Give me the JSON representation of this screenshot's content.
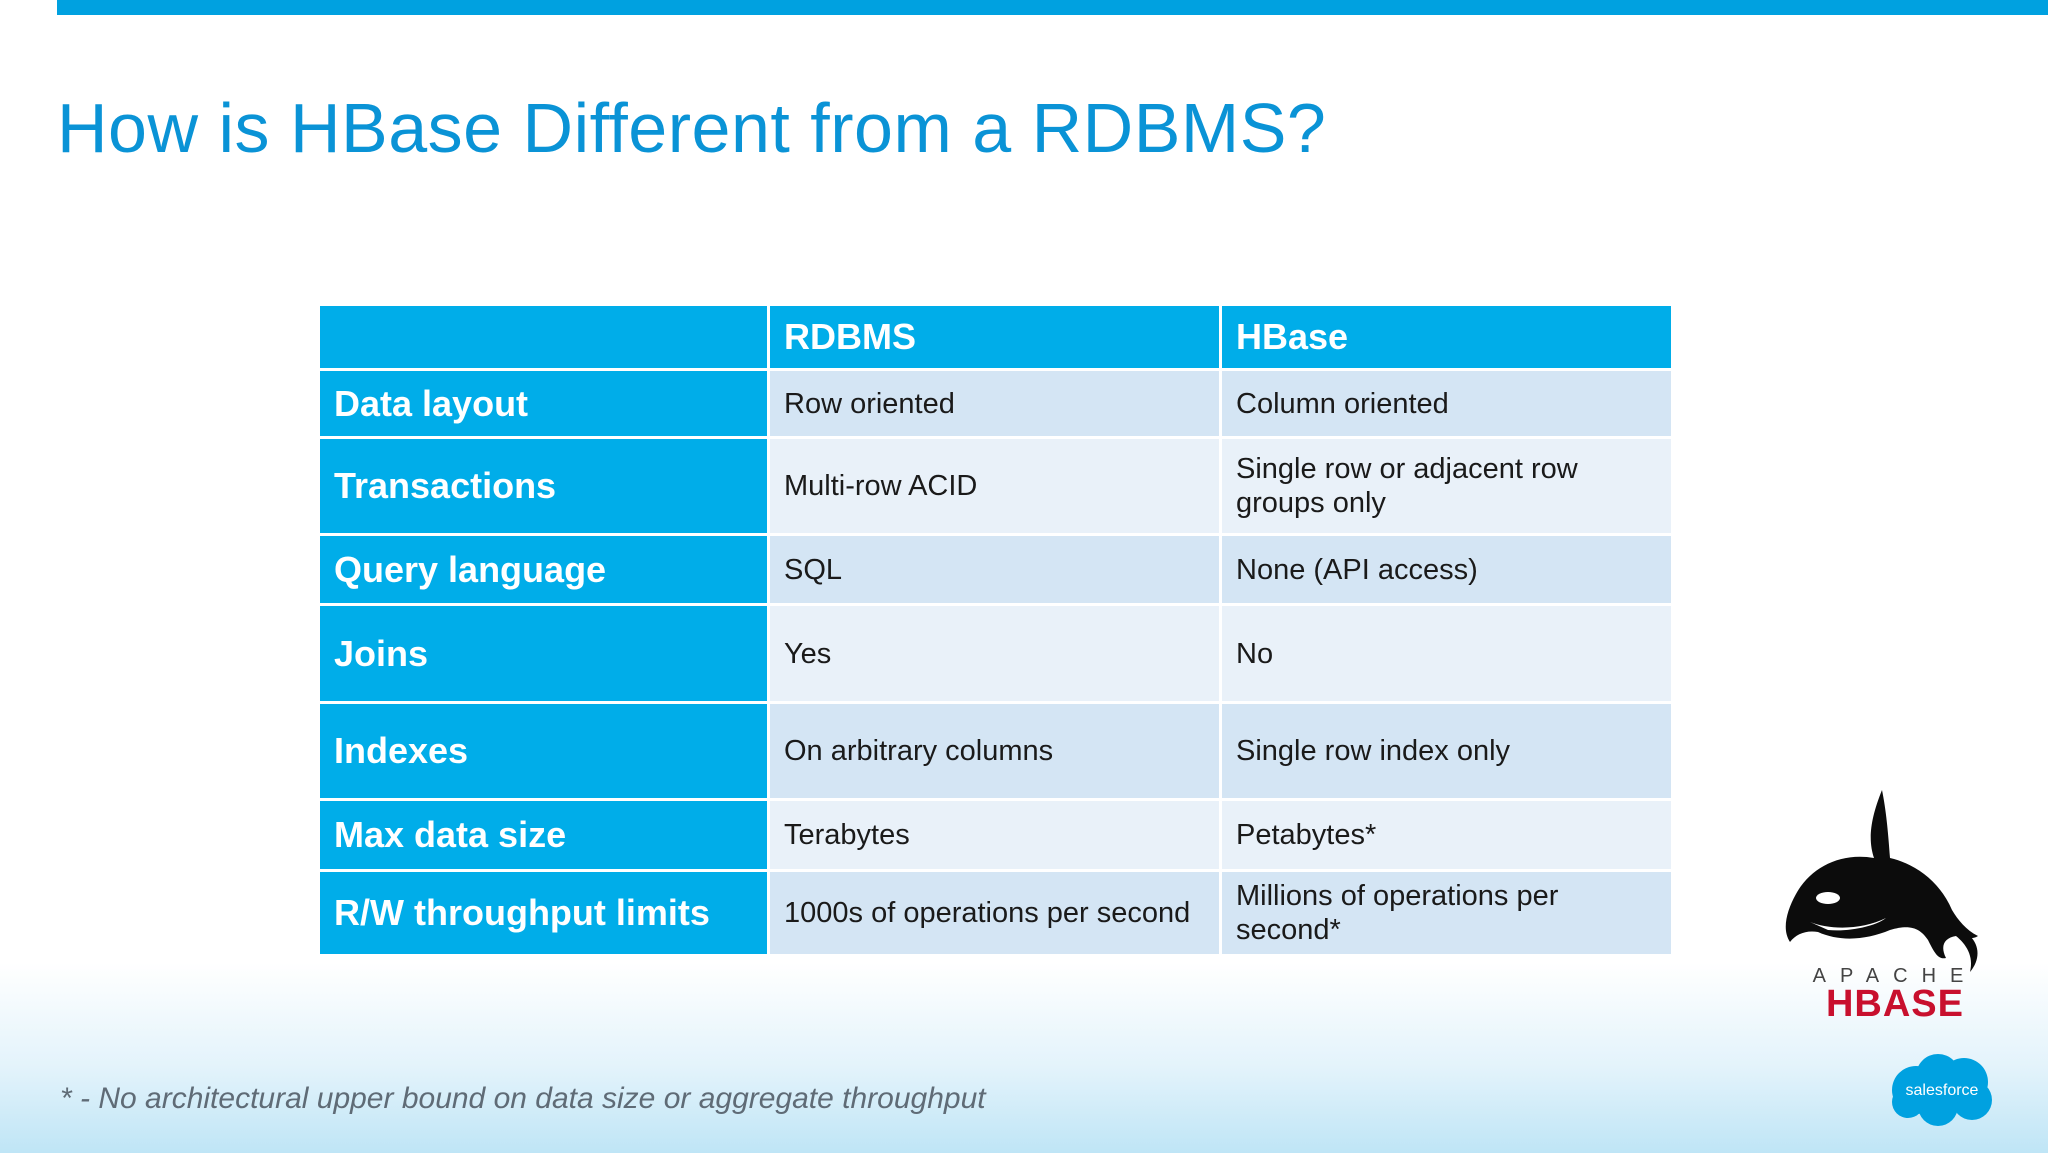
{
  "title": "How is HBase Different from a RDBMS?",
  "table": {
    "header": [
      "",
      "RDBMS",
      "HBase"
    ],
    "rows": [
      {
        "label": "Data layout",
        "rdbms": "Row oriented",
        "hbase": "Column oriented"
      },
      {
        "label": "Transactions",
        "rdbms": "Multi-row ACID",
        "hbase": "Single row or adjacent row groups only"
      },
      {
        "label": "Query language",
        "rdbms": "SQL",
        "hbase": "None (API access)"
      },
      {
        "label": "Joins",
        "rdbms": "Yes",
        "hbase": "No"
      },
      {
        "label": "Indexes",
        "rdbms": "On arbitrary columns",
        "hbase": "Single row index only"
      },
      {
        "label": "Max data size",
        "rdbms": "Terabytes",
        "hbase": "Petabytes*"
      },
      {
        "label": "R/W throughput limits",
        "rdbms": "1000s of operations per second",
        "hbase": "Millions of operations per second*"
      }
    ]
  },
  "footnote": "* - No architectural upper bound on data size or aggregate throughput",
  "logos": {
    "hbase_top": "APACHE",
    "hbase_bottom": "HBASE",
    "salesforce": "salesforce"
  },
  "colors": {
    "accent": "#00a1e0",
    "title": "#0a93d6",
    "row_odd": "#d4e5f4",
    "row_even": "#e9f1f9",
    "hbase_red": "#c8102e"
  }
}
